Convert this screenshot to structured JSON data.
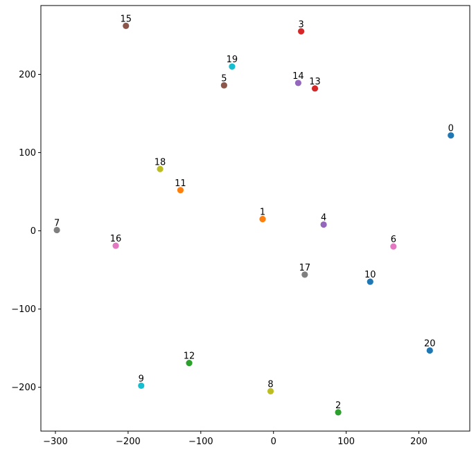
{
  "chart_data": {
    "type": "scatter",
    "title": "",
    "xlabel": "",
    "ylabel": "",
    "xlim": [
      -320,
      270
    ],
    "ylim": [
      -256,
      288
    ],
    "xticks": [
      -300,
      -200,
      -100,
      0,
      100,
      200
    ],
    "yticks": [
      -200,
      -100,
      0,
      100,
      200
    ],
    "grid": false,
    "legend": "none",
    "points": [
      {
        "label": "0",
        "x": 244,
        "y": 122,
        "color": "#1f77b4"
      },
      {
        "label": "1",
        "x": -15,
        "y": 15,
        "color": "#ff7f0e"
      },
      {
        "label": "2",
        "x": 89,
        "y": -232,
        "color": "#2ca02c"
      },
      {
        "label": "3",
        "x": 38,
        "y": 255,
        "color": "#d62728"
      },
      {
        "label": "4",
        "x": 69,
        "y": 8,
        "color": "#9467bd"
      },
      {
        "label": "5",
        "x": -68,
        "y": 186,
        "color": "#8c564b"
      },
      {
        "label": "6",
        "x": 165,
        "y": -20,
        "color": "#e377c2"
      },
      {
        "label": "7",
        "x": -298,
        "y": 1,
        "color": "#7f7f7f"
      },
      {
        "label": "8",
        "x": -4,
        "y": -205,
        "color": "#bcbd22"
      },
      {
        "label": "9",
        "x": -182,
        "y": -198,
        "color": "#17becf"
      },
      {
        "label": "10",
        "x": 133,
        "y": -65,
        "color": "#1f77b4"
      },
      {
        "label": "11",
        "x": -128,
        "y": 52,
        "color": "#ff7f0e"
      },
      {
        "label": "12",
        "x": -116,
        "y": -169,
        "color": "#2ca02c"
      },
      {
        "label": "13",
        "x": 57,
        "y": 182,
        "color": "#d62728"
      },
      {
        "label": "14",
        "x": 34,
        "y": 189,
        "color": "#9467bd"
      },
      {
        "label": "15",
        "x": -203,
        "y": 262,
        "color": "#8c564b"
      },
      {
        "label": "16",
        "x": -217,
        "y": -19,
        "color": "#e377c2"
      },
      {
        "label": "17",
        "x": 43,
        "y": -56,
        "color": "#7f7f7f"
      },
      {
        "label": "18",
        "x": -156,
        "y": 79,
        "color": "#bcbd22"
      },
      {
        "label": "19",
        "x": -57,
        "y": 210,
        "color": "#17becf"
      },
      {
        "label": "20",
        "x": 215,
        "y": -153,
        "color": "#1f77b4"
      }
    ]
  }
}
